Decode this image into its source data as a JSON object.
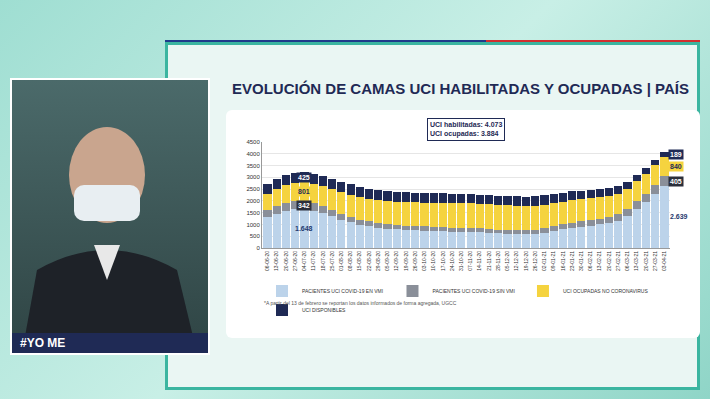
{
  "screen": {
    "caption": "#YO ME"
  },
  "chart_data": {
    "type": "bar",
    "stacked": true,
    "title": "EVOLUCIÓN DE CAMAS UCI HABILITADAS Y OCUPADAS | PAÍS",
    "annotations": [
      "UCI habilitadas: 4.073",
      "UCI ocupadas: 3.884"
    ],
    "footnote": "*A partir del 13 de febrero se reportan los datos informados de forma agregada, UGCC",
    "categories": [
      "06-06-20",
      "13-06-20",
      "20-06-20",
      "27-06-20",
      "04-07-20",
      "11-07-20",
      "18-07-20",
      "25-07-20",
      "01-08-20",
      "08-08-20",
      "15-08-20",
      "22-08-20",
      "29-08-20",
      "05-09-20",
      "12-09-20",
      "19-09-20",
      "26-09-20",
      "03-10-20",
      "10-10-20",
      "17-10-20",
      "24-10-20",
      "31-10-20",
      "07-11-20",
      "14-11-20",
      "21-11-20",
      "28-11-20",
      "05-12-20",
      "12-12-20",
      "19-12-20",
      "26-12-20",
      "02-01-21",
      "09-01-21",
      "16-01-21",
      "23-01-21",
      "30-01-21",
      "06-02-21",
      "13-02-21",
      "20-02-21",
      "27-02-21",
      "06-03-21",
      "13-03-21",
      "20-03-21",
      "27-03-21",
      "03-04-21"
    ],
    "series": [
      {
        "name": "PACIENTES UCI COVID-19 EN VMI",
        "color": "#bcd3ea",
        "values": [
          1300,
          1450,
          1580,
          1640,
          1648,
          1580,
          1470,
          1340,
          1200,
          1090,
          990,
          920,
          860,
          820,
          800,
          770,
          760,
          740,
          730,
          720,
          700,
          690,
          680,
          660,
          640,
          620,
          600,
          590,
          580,
          600,
          650,
          720,
          800,
          860,
          900,
          950,
          1000,
          1050,
          1150,
          1350,
          1650,
          1950,
          2300,
          2639
        ],
        "value_labels": [
          null,
          null,
          null,
          null,
          "1.648",
          null,
          null,
          null,
          null,
          null,
          null,
          null,
          null,
          null,
          null,
          null,
          null,
          null,
          null,
          null,
          null,
          null,
          null,
          null,
          null,
          null,
          null,
          null,
          null,
          null,
          null,
          null,
          null,
          null,
          null,
          null,
          null,
          null,
          null,
          null,
          null,
          null,
          null,
          "2.639"
        ]
      },
      {
        "name": "PACIENTES UCI COVID-19 SIN VMI",
        "color": "#8a8f99",
        "values": [
          300,
          320,
          330,
          340,
          342,
          320,
          300,
          280,
          260,
          240,
          220,
          210,
          200,
          195,
          190,
          185,
          180,
          180,
          175,
          175,
          170,
          170,
          170,
          170,
          165,
          165,
          165,
          170,
          175,
          180,
          190,
          200,
          210,
          220,
          230,
          240,
          250,
          260,
          280,
          300,
          330,
          360,
          390,
          405
        ],
        "value_labels": [
          null,
          null,
          null,
          null,
          "342",
          null,
          null,
          null,
          null,
          null,
          null,
          null,
          null,
          null,
          null,
          null,
          null,
          null,
          null,
          null,
          null,
          null,
          null,
          null,
          null,
          null,
          null,
          null,
          null,
          null,
          null,
          null,
          null,
          null,
          null,
          null,
          null,
          null,
          null,
          null,
          null,
          null,
          null,
          "405"
        ]
      },
      {
        "name": "UCI OCUPADAS NO CORONAVIRUS",
        "color": "#f5d33f",
        "values": [
          700,
          720,
          760,
          790,
          801,
          820,
          850,
          880,
          900,
          920,
          940,
          950,
          960,
          970,
          980,
          990,
          1000,
          1010,
          1010,
          1020,
          1020,
          1030,
          1040,
          1040,
          1050,
          1050,
          1050,
          1040,
          1030,
          1020,
          1000,
          980,
          960,
          950,
          930,
          920,
          900,
          890,
          880,
          870,
          860,
          850,
          845,
          840
        ],
        "value_labels": [
          null,
          null,
          null,
          null,
          "801",
          null,
          null,
          null,
          null,
          null,
          null,
          null,
          null,
          null,
          null,
          null,
          null,
          null,
          null,
          null,
          null,
          null,
          null,
          null,
          null,
          null,
          null,
          null,
          null,
          null,
          null,
          null,
          null,
          null,
          null,
          null,
          null,
          null,
          null,
          null,
          null,
          null,
          null,
          "840"
        ]
      },
      {
        "name": "UCI DISPONIBLES",
        "color": "#1f2a55",
        "values": [
          420,
          430,
          430,
          425,
          425,
          430,
          440,
          450,
          450,
          450,
          440,
          440,
          430,
          430,
          420,
          420,
          410,
          410,
          400,
          400,
          400,
          390,
          390,
          390,
          380,
          380,
          380,
          390,
          400,
          410,
          400,
          390,
          380,
          370,
          360,
          350,
          340,
          330,
          310,
          290,
          260,
          230,
          210,
          189
        ],
        "value_labels": [
          null,
          null,
          null,
          null,
          "425",
          null,
          null,
          null,
          null,
          null,
          null,
          null,
          null,
          null,
          null,
          null,
          null,
          null,
          null,
          null,
          null,
          null,
          null,
          null,
          null,
          null,
          null,
          null,
          null,
          null,
          null,
          null,
          null,
          null,
          null,
          null,
          null,
          null,
          null,
          null,
          null,
          null,
          null,
          "189"
        ]
      }
    ],
    "ylim": [
      0,
      4500
    ],
    "yticks": [
      0,
      500,
      1000,
      1500,
      2000,
      2500,
      3000,
      3500,
      4000,
      4500
    ],
    "grid": true,
    "legend": "bottom",
    "data_labels": true
  }
}
